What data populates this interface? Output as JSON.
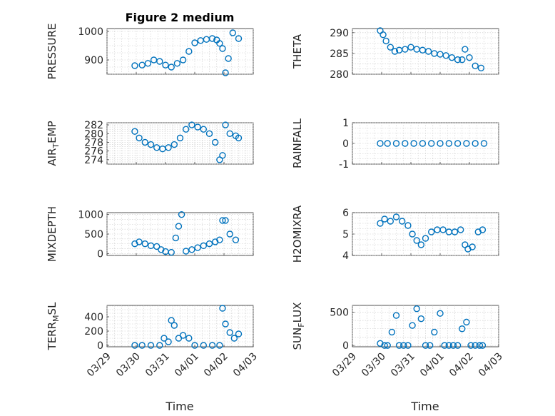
{
  "figure": {
    "title": "Figure 2 medium",
    "marker_color": "#0072BD",
    "xlabel": "Time"
  },
  "chart_data": [
    {
      "type": "scatter",
      "ylabel": "PRESSURE",
      "ylim": [
        850,
        1010
      ],
      "yticks": [
        900,
        1000
      ],
      "xlim": [
        "03/29",
        "04/03"
      ],
      "x": [
        0.95,
        1.2,
        1.4,
        1.6,
        1.8,
        2.0,
        2.2,
        2.4,
        2.6,
        2.8,
        3.0,
        3.2,
        3.4,
        3.6,
        3.75,
        3.85,
        3.95,
        4.05,
        4.15,
        4.3,
        4.5
      ],
      "y": [
        880,
        882,
        888,
        900,
        895,
        882,
        875,
        888,
        900,
        930,
        960,
        968,
        972,
        975,
        970,
        958,
        940,
        855,
        905,
        995,
        975
      ]
    },
    {
      "type": "scatter",
      "ylabel": "THETA",
      "ylim": [
        280,
        291
      ],
      "yticks": [
        280,
        285,
        290
      ],
      "xlim": [
        "03/29",
        "04/03"
      ],
      "x": [
        0.95,
        1.05,
        1.15,
        1.3,
        1.45,
        1.6,
        1.8,
        2.0,
        2.2,
        2.4,
        2.6,
        2.8,
        3.0,
        3.2,
        3.4,
        3.6,
        3.75,
        3.85,
        4.0,
        4.2,
        4.4
      ],
      "y": [
        290.5,
        289.5,
        288,
        286.5,
        285.5,
        285.8,
        286,
        286.5,
        286,
        285.8,
        285.5,
        285,
        284.8,
        284.5,
        284,
        283.5,
        283.5,
        286,
        284,
        282,
        281.5
      ]
    },
    {
      "type": "scatter",
      "ylabel": "AIR_TEMP",
      "ylim": [
        273,
        282.5
      ],
      "yticks": [
        274,
        276,
        278,
        280,
        282
      ],
      "xlim": [
        "03/29",
        "04/03"
      ],
      "x": [
        0.95,
        1.1,
        1.3,
        1.5,
        1.7,
        1.9,
        2.1,
        2.3,
        2.5,
        2.7,
        2.9,
        3.1,
        3.3,
        3.5,
        3.7,
        3.85,
        3.95,
        4.05,
        4.2,
        4.4,
        4.5
      ],
      "y": [
        280.5,
        279,
        278,
        277.5,
        276.8,
        276.5,
        276.8,
        277.5,
        279,
        281,
        282,
        281.5,
        281,
        280,
        278,
        274,
        275,
        282,
        280,
        279.5,
        279
      ]
    },
    {
      "type": "scatter",
      "ylabel": "RAINFALL",
      "ylim": [
        -1,
        1
      ],
      "yticks": [
        -1,
        0,
        1
      ],
      "xlim": [
        "03/29",
        "04/03"
      ],
      "x": [
        0.95,
        1.2,
        1.5,
        1.8,
        2.1,
        2.4,
        2.7,
        3.0,
        3.3,
        3.6,
        3.9,
        4.2,
        4.5
      ],
      "y": [
        0,
        0,
        0,
        0,
        0,
        0,
        0,
        0,
        0,
        0,
        0,
        0,
        0
      ]
    },
    {
      "type": "scatter",
      "ylabel": "MIXDEPTH",
      "ylim": [
        -50,
        1050
      ],
      "yticks": [
        0,
        500,
        1000
      ],
      "xlim": [
        "03/29",
        "04/03"
      ],
      "x": [
        0.95,
        1.1,
        1.3,
        1.5,
        1.7,
        1.85,
        2.0,
        2.2,
        2.35,
        2.45,
        2.55,
        2.7,
        2.9,
        3.1,
        3.3,
        3.5,
        3.7,
        3.85,
        3.95,
        4.05,
        4.2,
        4.4
      ],
      "y": [
        250,
        300,
        250,
        200,
        180,
        100,
        50,
        30,
        400,
        700,
        1000,
        60,
        100,
        150,
        200,
        250,
        300,
        350,
        850,
        850,
        500,
        350
      ]
    },
    {
      "type": "scatter",
      "ylabel": "H2OMIXRA",
      "ylim": [
        4,
        6
      ],
      "yticks": [
        4,
        5,
        6
      ],
      "xlim": [
        "03/29",
        "04/03"
      ],
      "x": [
        0.95,
        1.1,
        1.3,
        1.5,
        1.7,
        1.9,
        2.05,
        2.2,
        2.35,
        2.5,
        2.7,
        2.9,
        3.1,
        3.3,
        3.5,
        3.7,
        3.85,
        3.95,
        4.1,
        4.3,
        4.45
      ],
      "y": [
        5.5,
        5.7,
        5.6,
        5.8,
        5.6,
        5.4,
        5.0,
        4.7,
        4.5,
        4.8,
        5.1,
        5.2,
        5.2,
        5.1,
        5.1,
        5.2,
        4.5,
        4.3,
        4.4,
        5.1,
        5.2
      ]
    },
    {
      "type": "scatter",
      "ylabel": "TERR_MSL",
      "ylim": [
        -20,
        560
      ],
      "yticks": [
        0,
        200,
        400
      ],
      "xlim": [
        "03/29",
        "04/03"
      ],
      "x": [
        0.95,
        1.2,
        1.5,
        1.8,
        1.95,
        2.1,
        2.2,
        2.3,
        2.45,
        2.6,
        2.8,
        3.0,
        3.3,
        3.6,
        3.85,
        3.95,
        4.05,
        4.2,
        4.35,
        4.5
      ],
      "y": [
        0,
        0,
        0,
        0,
        100,
        50,
        350,
        280,
        100,
        140,
        100,
        0,
        0,
        0,
        0,
        520,
        300,
        180,
        100,
        160
      ]
    },
    {
      "type": "scatter",
      "ylabel": "SUN_FLUX",
      "ylim": [
        -20,
        600
      ],
      "yticks": [
        0,
        500
      ],
      "xlim": [
        "03/29",
        "04/03"
      ],
      "x": [
        0.95,
        1.1,
        1.2,
        1.35,
        1.5,
        1.6,
        1.75,
        1.9,
        2.05,
        2.2,
        2.35,
        2.5,
        2.65,
        2.8,
        3.0,
        3.15,
        3.3,
        3.45,
        3.6,
        3.75,
        3.9,
        4.05,
        4.2,
        4.35,
        4.45
      ],
      "y": [
        30,
        0,
        0,
        200,
        450,
        0,
        0,
        0,
        300,
        550,
        400,
        0,
        0,
        200,
        480,
        0,
        0,
        0,
        0,
        250,
        350,
        0,
        0,
        0,
        0
      ]
    }
  ],
  "xticks": [
    "03/29",
    "03/30",
    "03/31",
    "04/01",
    "04/02",
    "04/03"
  ]
}
